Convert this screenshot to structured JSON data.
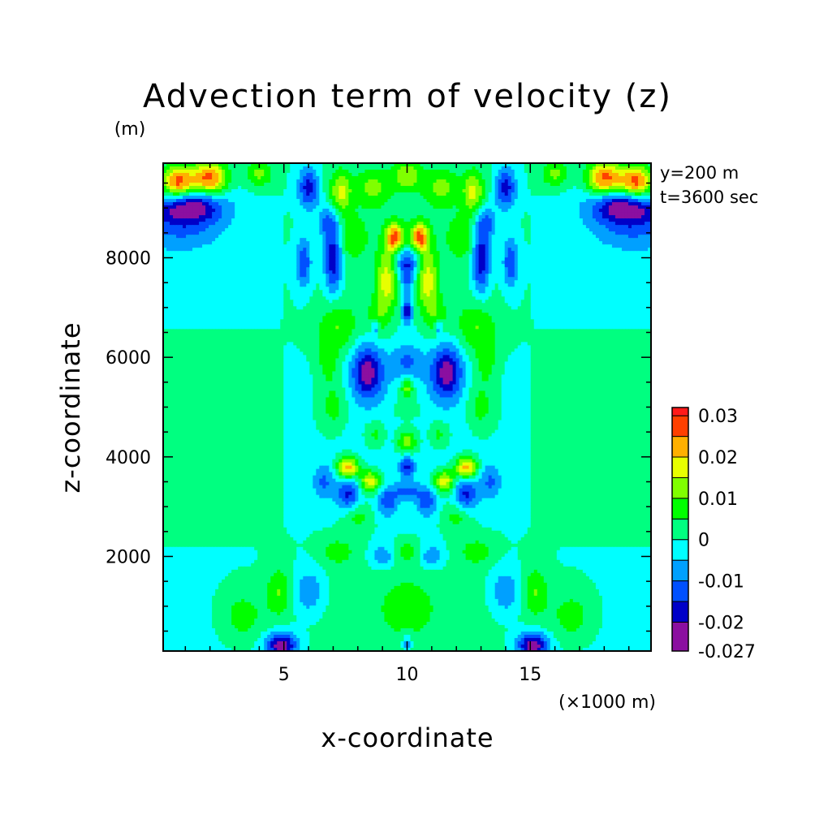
{
  "chart_data": {
    "type": "heatmap",
    "title": "Advection term of velocity (z)",
    "ylabel": "z-coordinate",
    "y_unit": "(m)",
    "xlabel": "x-coordinate",
    "x_unit": "(×1000 m)",
    "annotations": [
      "y=200 m",
      "t=3600 sec"
    ],
    "xlim": [
      0.1,
      19.9
    ],
    "ylim": [
      100,
      9900
    ],
    "x_ticks": [
      5,
      10,
      15
    ],
    "x_tick_labels": [
      "5",
      "10",
      "15"
    ],
    "y_ticks": [
      2000,
      4000,
      6000,
      8000
    ],
    "y_tick_labels": [
      "2000",
      "4000",
      "6000",
      "8000"
    ],
    "colorbar": {
      "levels": [
        -0.027,
        -0.02,
        -0.015,
        -0.01,
        -0.005,
        0,
        0.005,
        0.01,
        0.015,
        0.02,
        0.025,
        0.03,
        0.032
      ],
      "colors": [
        "#8b0fa0",
        "#0000c8",
        "#0050ff",
        "#00a0ff",
        "#00ffff",
        "#00ff80",
        "#00ff00",
        "#80ff00",
        "#e8ff00",
        "#ffb000",
        "#ff4000",
        "#ff1a1a",
        "#ff9999"
      ],
      "tick_labels": [
        "0.03",
        "0.02",
        "0.01",
        "0",
        "-0.01",
        "-0.02",
        "-0.027"
      ],
      "tick_values": [
        0.03,
        0.02,
        0.01,
        0,
        -0.01,
        -0.02,
        -0.027
      ]
    },
    "field_features": [
      {
        "x": 0.7,
        "z": 9500,
        "value": 0.03,
        "sx": 0.5,
        "sz": 250
      },
      {
        "x": 2.0,
        "z": 9600,
        "value": 0.028,
        "sx": 0.5,
        "sz": 250
      },
      {
        "x": 1.2,
        "z": 9050,
        "value": -0.02,
        "sx": 0.9,
        "sz": 220
      },
      {
        "x": 0.8,
        "z": 8700,
        "value": -0.01,
        "sx": 1.2,
        "sz": 350
      },
      {
        "x": 19.3,
        "z": 9500,
        "value": 0.03,
        "sx": 0.5,
        "sz": 250
      },
      {
        "x": 18.0,
        "z": 9600,
        "value": 0.028,
        "sx": 0.5,
        "sz": 250
      },
      {
        "x": 18.8,
        "z": 9050,
        "value": -0.02,
        "sx": 0.9,
        "sz": 220
      },
      {
        "x": 19.2,
        "z": 8700,
        "value": -0.01,
        "sx": 1.2,
        "sz": 350
      },
      {
        "x": 4.0,
        "z": 9700,
        "value": 0.012,
        "sx": 0.4,
        "sz": 200
      },
      {
        "x": 16.0,
        "z": 9700,
        "value": 0.012,
        "sx": 0.4,
        "sz": 200
      },
      {
        "x": 6.0,
        "z": 9400,
        "value": -0.018,
        "sx": 0.3,
        "sz": 300
      },
      {
        "x": 14.0,
        "z": 9400,
        "value": -0.018,
        "sx": 0.3,
        "sz": 300
      },
      {
        "x": 7.3,
        "z": 9300,
        "value": 0.015,
        "sx": 0.3,
        "sz": 300
      },
      {
        "x": 12.7,
        "z": 9300,
        "value": 0.015,
        "sx": 0.3,
        "sz": 300
      },
      {
        "x": 8.6,
        "z": 9400,
        "value": 0.01,
        "sx": 0.5,
        "sz": 250
      },
      {
        "x": 11.4,
        "z": 9400,
        "value": 0.01,
        "sx": 0.5,
        "sz": 250
      },
      {
        "x": 10.0,
        "z": 9650,
        "value": 0.012,
        "sx": 0.4,
        "sz": 200
      },
      {
        "x": 6.8,
        "z": 8700,
        "value": -0.012,
        "sx": 0.3,
        "sz": 250
      },
      {
        "x": 13.2,
        "z": 8700,
        "value": -0.012,
        "sx": 0.3,
        "sz": 250
      },
      {
        "x": 7.0,
        "z": 7950,
        "value": -0.02,
        "sx": 0.25,
        "sz": 450
      },
      {
        "x": 13.0,
        "z": 7950,
        "value": -0.02,
        "sx": 0.25,
        "sz": 450
      },
      {
        "x": 5.8,
        "z": 7900,
        "value": -0.015,
        "sx": 0.22,
        "sz": 350
      },
      {
        "x": 14.2,
        "z": 7900,
        "value": -0.015,
        "sx": 0.22,
        "sz": 350
      },
      {
        "x": 7.8,
        "z": 8400,
        "value": 0.008,
        "sx": 0.4,
        "sz": 300
      },
      {
        "x": 12.2,
        "z": 8400,
        "value": 0.008,
        "sx": 0.4,
        "sz": 300
      },
      {
        "x": 9.5,
        "z": 8400,
        "value": 0.025,
        "sx": 0.25,
        "sz": 200
      },
      {
        "x": 10.5,
        "z": 8400,
        "value": 0.025,
        "sx": 0.25,
        "sz": 200
      },
      {
        "x": 10.0,
        "z": 7900,
        "value": -0.015,
        "sx": 0.5,
        "sz": 230
      },
      {
        "x": 10.0,
        "z": 7500,
        "value": -0.01,
        "sx": 0.2,
        "sz": 250
      },
      {
        "x": 9.2,
        "z": 7600,
        "value": 0.018,
        "sx": 0.3,
        "sz": 450
      },
      {
        "x": 10.8,
        "z": 7600,
        "value": 0.018,
        "sx": 0.3,
        "sz": 450
      },
      {
        "x": 10.0,
        "z": 6900,
        "value": -0.02,
        "sx": 0.15,
        "sz": 150
      },
      {
        "x": 8.8,
        "z": 6800,
        "value": 0.008,
        "sx": 0.3,
        "sz": 300
      },
      {
        "x": 11.2,
        "z": 6800,
        "value": 0.008,
        "sx": 0.3,
        "sz": 300
      },
      {
        "x": 8.7,
        "z": 6600,
        "value": -0.012,
        "sx": 0.12,
        "sz": 120
      },
      {
        "x": 11.3,
        "z": 6600,
        "value": -0.012,
        "sx": 0.12,
        "sz": 120
      },
      {
        "x": 7.2,
        "z": 6600,
        "value": 0.01,
        "sx": 0.6,
        "sz": 350
      },
      {
        "x": 12.8,
        "z": 6600,
        "value": 0.01,
        "sx": 0.6,
        "sz": 350
      },
      {
        "x": 8.4,
        "z": 5700,
        "value": -0.022,
        "sx": 0.45,
        "sz": 380
      },
      {
        "x": 11.6,
        "z": 5700,
        "value": -0.022,
        "sx": 0.45,
        "sz": 380
      },
      {
        "x": 10.0,
        "z": 5900,
        "value": -0.01,
        "sx": 0.45,
        "sz": 280
      },
      {
        "x": 10.0,
        "z": 5400,
        "value": 0.015,
        "sx": 0.2,
        "sz": 150
      },
      {
        "x": 6.8,
        "z": 5900,
        "value": 0.008,
        "sx": 0.3,
        "sz": 300
      },
      {
        "x": 13.2,
        "z": 5900,
        "value": 0.008,
        "sx": 0.3,
        "sz": 300
      },
      {
        "x": 7.0,
        "z": 5000,
        "value": 0.008,
        "sx": 0.4,
        "sz": 350
      },
      {
        "x": 13.0,
        "z": 5000,
        "value": 0.008,
        "sx": 0.4,
        "sz": 350
      },
      {
        "x": 10.0,
        "z": 4950,
        "value": 0.005,
        "sx": 0.5,
        "sz": 150
      },
      {
        "x": 10.0,
        "z": 4300,
        "value": 0.015,
        "sx": 0.3,
        "sz": 180
      },
      {
        "x": 8.7,
        "z": 4450,
        "value": 0.008,
        "sx": 0.3,
        "sz": 200
      },
      {
        "x": 11.3,
        "z": 4450,
        "value": 0.008,
        "sx": 0.3,
        "sz": 200
      },
      {
        "x": 7.6,
        "z": 3780,
        "value": 0.025,
        "sx": 0.3,
        "sz": 150
      },
      {
        "x": 12.4,
        "z": 3780,
        "value": 0.025,
        "sx": 0.3,
        "sz": 150
      },
      {
        "x": 8.5,
        "z": 3500,
        "value": 0.02,
        "sx": 0.3,
        "sz": 160
      },
      {
        "x": 11.5,
        "z": 3500,
        "value": 0.02,
        "sx": 0.3,
        "sz": 160
      },
      {
        "x": 10.0,
        "z": 3800,
        "value": -0.015,
        "sx": 0.2,
        "sz": 150
      },
      {
        "x": 7.6,
        "z": 3250,
        "value": -0.015,
        "sx": 0.35,
        "sz": 230
      },
      {
        "x": 12.4,
        "z": 3250,
        "value": -0.015,
        "sx": 0.35,
        "sz": 230
      },
      {
        "x": 9.2,
        "z": 3100,
        "value": -0.012,
        "sx": 0.3,
        "sz": 200
      },
      {
        "x": 10.8,
        "z": 3100,
        "value": -0.012,
        "sx": 0.3,
        "sz": 200
      },
      {
        "x": 6.6,
        "z": 3500,
        "value": -0.01,
        "sx": 0.3,
        "sz": 250
      },
      {
        "x": 13.4,
        "z": 3500,
        "value": -0.01,
        "sx": 0.3,
        "sz": 250
      },
      {
        "x": 10.0,
        "z": 3300,
        "value": -0.01,
        "sx": 0.4,
        "sz": 120
      },
      {
        "x": 8.0,
        "z": 2800,
        "value": 0.008,
        "sx": 0.4,
        "sz": 200
      },
      {
        "x": 12.0,
        "z": 2800,
        "value": 0.008,
        "sx": 0.4,
        "sz": 200
      },
      {
        "x": 9.0,
        "z": 2000,
        "value": -0.01,
        "sx": 0.3,
        "sz": 150
      },
      {
        "x": 11.0,
        "z": 2000,
        "value": -0.01,
        "sx": 0.3,
        "sz": 150
      },
      {
        "x": 10.0,
        "z": 2100,
        "value": 0.008,
        "sx": 0.3,
        "sz": 150
      },
      {
        "x": 7.2,
        "z": 2100,
        "value": 0.008,
        "sx": 0.5,
        "sz": 200
      },
      {
        "x": 12.8,
        "z": 2100,
        "value": 0.008,
        "sx": 0.5,
        "sz": 200
      },
      {
        "x": 4.8,
        "z": 1300,
        "value": 0.01,
        "sx": 0.35,
        "sz": 350
      },
      {
        "x": 15.2,
        "z": 1300,
        "value": 0.01,
        "sx": 0.35,
        "sz": 350
      },
      {
        "x": 6.0,
        "z": 1300,
        "value": -0.01,
        "sx": 0.4,
        "sz": 300
      },
      {
        "x": 14.0,
        "z": 1300,
        "value": -0.01,
        "sx": 0.4,
        "sz": 300
      },
      {
        "x": 3.3,
        "z": 800,
        "value": 0.008,
        "sx": 0.7,
        "sz": 400
      },
      {
        "x": 16.7,
        "z": 800,
        "value": 0.008,
        "sx": 0.7,
        "sz": 400
      },
      {
        "x": 10.0,
        "z": 1000,
        "value": 0.007,
        "sx": 0.8,
        "sz": 400
      },
      {
        "x": 4.9,
        "z": 220,
        "value": -0.024,
        "sx": 0.45,
        "sz": 180
      },
      {
        "x": 15.1,
        "z": 220,
        "value": -0.024,
        "sx": 0.45,
        "sz": 180
      },
      {
        "x": 10.0,
        "z": 250,
        "value": -0.01,
        "sx": 0.15,
        "sz": 150
      }
    ]
  }
}
